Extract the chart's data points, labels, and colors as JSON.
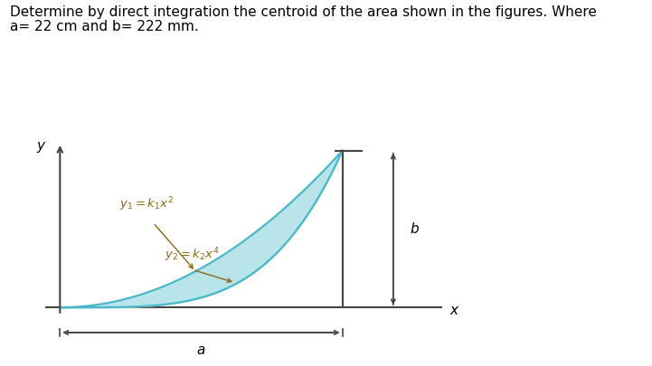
{
  "title_line1": "Determine by direct integration the centroid of the area shown in the figures. Where",
  "title_line2": "a= 22 cm and b= 222 mm.",
  "title_fontsize": 11,
  "background_color": "#ffffff",
  "fig_width": 7.21,
  "fig_height": 4.05,
  "a_label": "a",
  "b_label": "b",
  "x_label": "x",
  "y_label": "y",
  "curve_fill_color": "#b8e4ea",
  "curve_edge_color": "#4ab8c8",
  "axes_color": "#444444",
  "annotation_color": "#8B6914",
  "arrow_color": "#444444",
  "label_y1_text": "$y_1 = k_1 x^2$",
  "label_y2_text": "$y_2 = k_2 x^4$"
}
